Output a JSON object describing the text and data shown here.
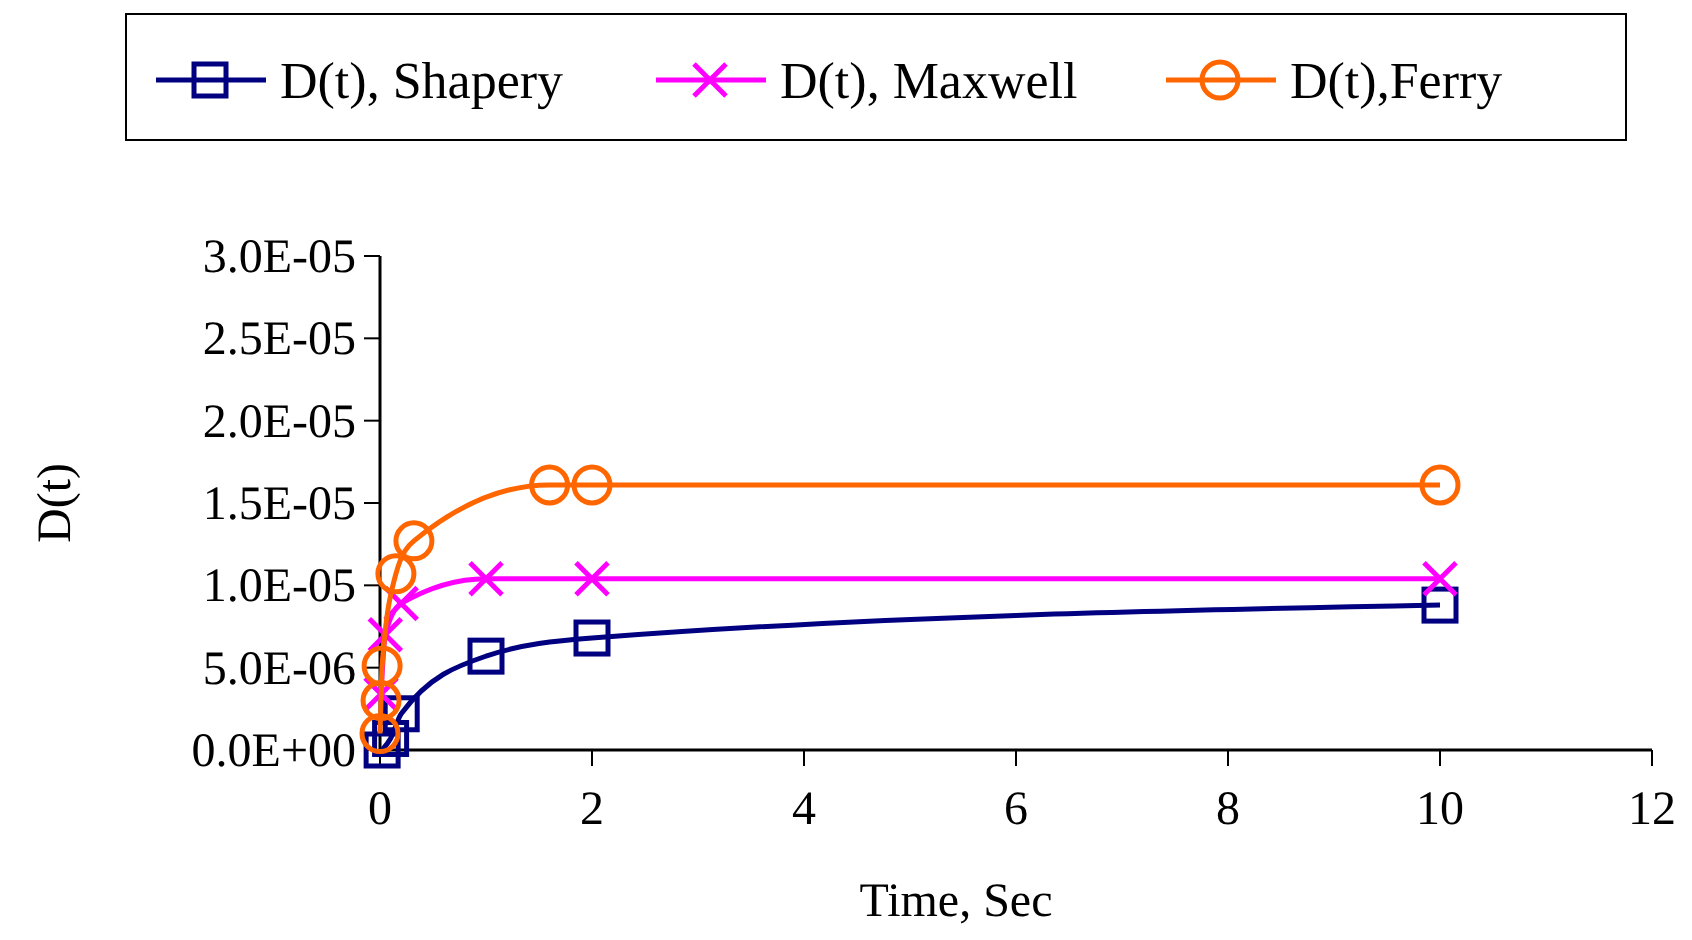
{
  "chart_data": {
    "type": "line",
    "xlabel": "Time, Sec",
    "ylabel": "D(t)",
    "xlim": [
      0,
      12
    ],
    "xticks": [
      0,
      2,
      4,
      6,
      8,
      10,
      12
    ],
    "ylim": [
      0,
      3e-05
    ],
    "yticks": [
      {
        "value": 0,
        "label": "0.0E+00"
      },
      {
        "value": 5e-06,
        "label": "5.0E-06"
      },
      {
        "value": 1e-05,
        "label": "1.0E-05"
      },
      {
        "value": 1.5e-05,
        "label": "1.5E-05"
      },
      {
        "value": 2e-05,
        "label": "2.0E-05"
      },
      {
        "value": 2.5e-05,
        "label": "2.5E-05"
      },
      {
        "value": 3e-05,
        "label": "3.0E-05"
      }
    ],
    "grid": false,
    "legend": "top",
    "series": [
      {
        "name": "D(t), Shapery",
        "color": "#000080",
        "marker": "square",
        "x": [
          0.02,
          0.1,
          0.2,
          1,
          2,
          10
        ],
        "values": [
          0,
          7e-07,
          2.2e-06,
          5.7e-06,
          6.8e-06,
          8.8e-06
        ]
      },
      {
        "name": "D(t), Maxwell",
        "color": "#ff00ff",
        "marker": "cross",
        "x": [
          0.01,
          0.05,
          0.2,
          1,
          2,
          10
        ],
        "values": [
          3.4e-06,
          7e-06,
          8.9e-06,
          1.04e-05,
          1.04e-05,
          1.04e-05
        ]
      },
      {
        "name": "D(t),Ferry",
        "color": "#ff6600",
        "marker": "circle",
        "x": [
          0,
          0.01,
          0.02,
          0.15,
          0.32,
          1.6,
          2,
          10
        ],
        "values": [
          1e-06,
          3e-06,
          5.1e-06,
          1.07e-05,
          1.27e-05,
          1.61e-05,
          1.61e-05,
          1.61e-05
        ]
      }
    ]
  }
}
